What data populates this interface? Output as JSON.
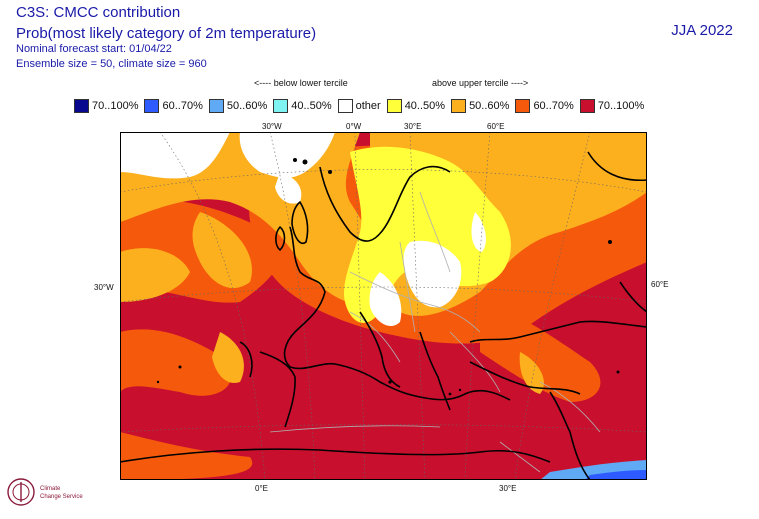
{
  "header": {
    "title": "C3S: CMCC contribution",
    "subtitle": "Prob(most likely category of 2m temperature)",
    "forecast_start": "Nominal forecast start: 01/04/22",
    "ensemble": "Ensemble size = 50, climate size = 960",
    "season": "JJA 2022"
  },
  "legend": {
    "below_label": "<---- below lower tercile",
    "above_label": "above upper tercile ---->",
    "items": [
      {
        "label": "70..100%",
        "color": "#08088e"
      },
      {
        "label": "60..70%",
        "color": "#2e5bff"
      },
      {
        "label": "50..60%",
        "color": "#5fa9f5"
      },
      {
        "label": "40..50%",
        "color": "#7ff2f2"
      },
      {
        "label": "other",
        "color": "#ffffff"
      },
      {
        "label": "40..50%",
        "color": "#ffff3a"
      },
      {
        "label": "50..60%",
        "color": "#fdb01e"
      },
      {
        "label": "60..70%",
        "color": "#f55a0c"
      },
      {
        "label": "70..100%",
        "color": "#c8102e"
      }
    ]
  },
  "map": {
    "lon_labels_top": [
      "30°W",
      "0°W",
      "30°E",
      "60°E"
    ],
    "lon_labels_bottom": [
      "0°E",
      "30°E"
    ],
    "lat_label_left": "30°W",
    "lat_label_right": "60°E"
  },
  "logo": {
    "text1": "Climate",
    "text2": "Change Service"
  }
}
